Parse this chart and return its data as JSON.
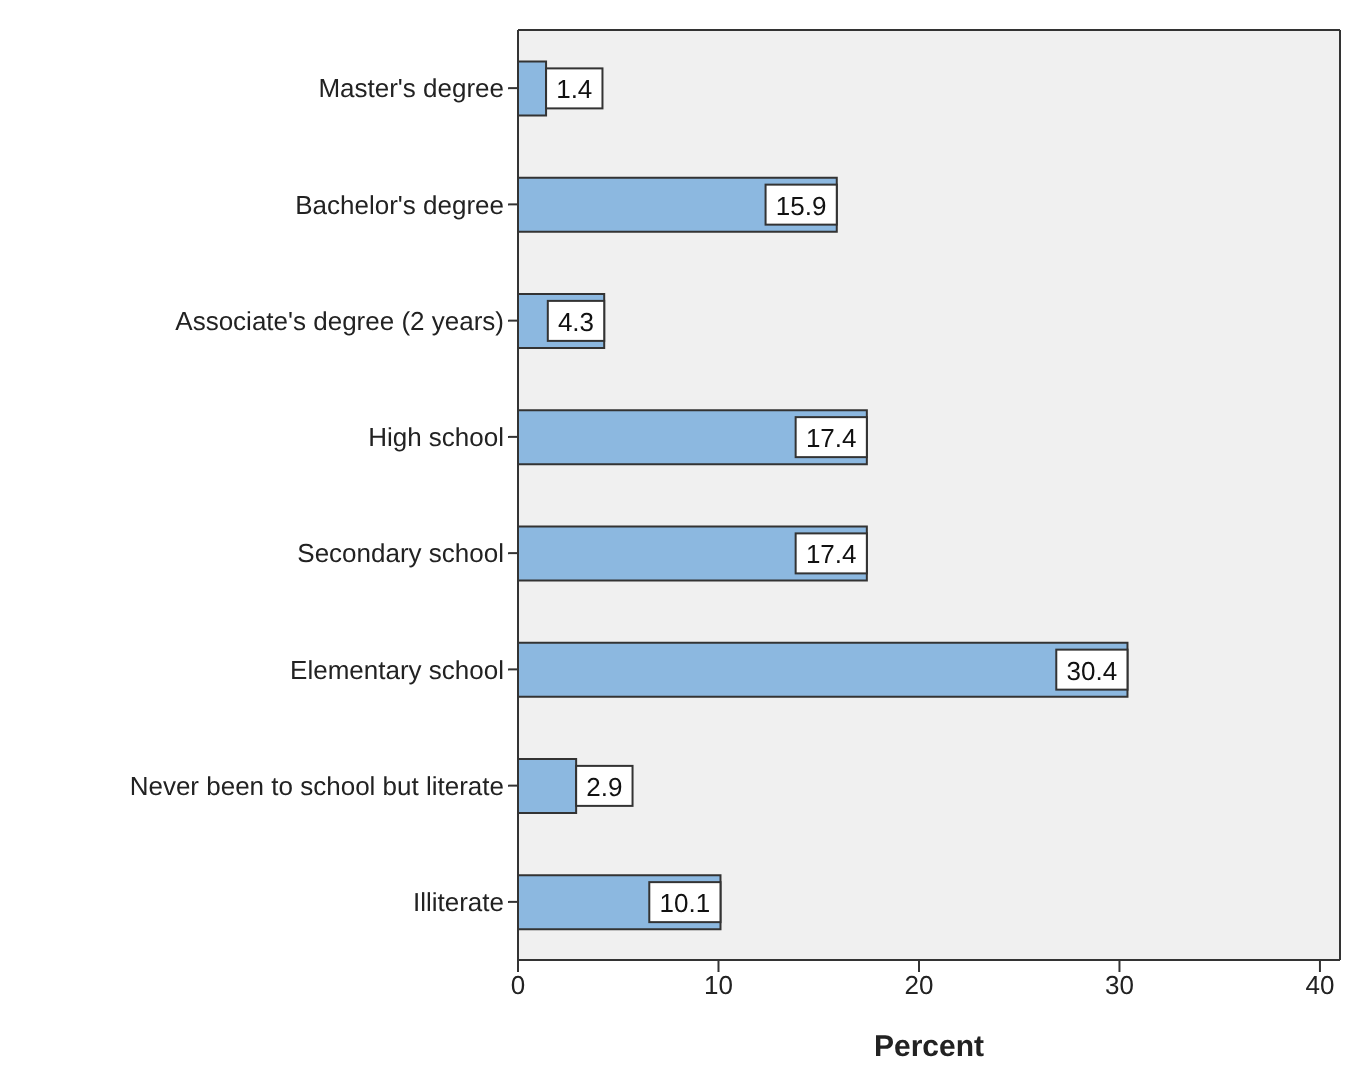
{
  "chart_data": {
    "type": "bar",
    "orientation": "horizontal",
    "xlabel": "Percent",
    "categories": [
      "Master's degree",
      "Bachelor's degree",
      "Associate's degree (2 years)",
      "High school",
      "Secondary school",
      "Elementary school",
      "Never been to school but literate",
      "Illiterate"
    ],
    "values": [
      1.4,
      15.9,
      4.3,
      17.4,
      17.4,
      30.4,
      2.9,
      10.1
    ],
    "color": "#8cb8e0",
    "data_labels": true,
    "xlim": [
      0,
      41
    ],
    "xticks": [
      0,
      10,
      20,
      30,
      40
    ]
  }
}
